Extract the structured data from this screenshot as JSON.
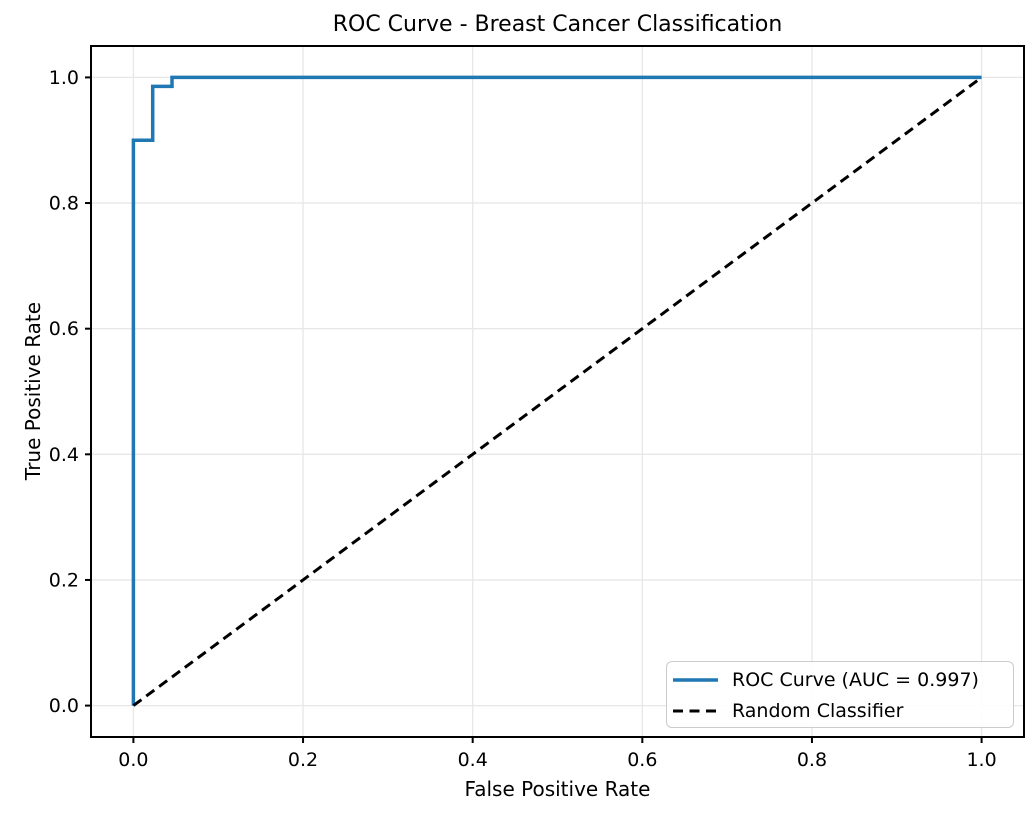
{
  "chart_data": {
    "type": "line",
    "title": "ROC Curve - Breast Cancer Classification",
    "xlabel": "False Positive Rate",
    "ylabel": "True Positive Rate",
    "xlim": [
      -0.05,
      1.05
    ],
    "ylim": [
      -0.05,
      1.05
    ],
    "xtick_labels": [
      "0.0",
      "0.2",
      "0.4",
      "0.6",
      "0.8",
      "1.0"
    ],
    "ytick_labels": [
      "0.0",
      "0.2",
      "0.4",
      "0.6",
      "0.8",
      "1.0"
    ],
    "grid": true,
    "legend_position": "lower right",
    "series": [
      {
        "name": "ROC Curve (AUC = 0.997)",
        "color": "#1f77b4",
        "style": "solid",
        "linewidth": 3.5,
        "x": [
          0.0,
          0.0,
          0.0227,
          0.0227,
          0.0455,
          0.0455,
          1.0
        ],
        "y": [
          0.0,
          0.9,
          0.9,
          0.9857,
          0.9857,
          1.0,
          1.0
        ]
      },
      {
        "name": "Random Classifier",
        "color": "#000000",
        "style": "dashed",
        "linewidth": 3,
        "x": [
          0.0,
          1.0
        ],
        "y": [
          0.0,
          1.0
        ]
      }
    ],
    "auc_value": "0.997"
  },
  "colors": {
    "curve_blue": "#1f77b4",
    "diagonal_black": "#000000",
    "grid": "#e7e7e7",
    "spine": "#000000",
    "legend_border": "#cccccc",
    "background": "#ffffff"
  }
}
